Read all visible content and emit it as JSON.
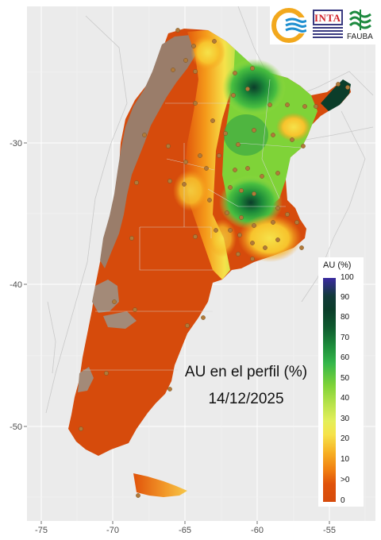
{
  "map": {
    "title_line1": "AU en el perfil (%)",
    "title_line2": "14/12/2025",
    "x_ticks": [
      "-75",
      "-70",
      "-65",
      "-60",
      "-55"
    ],
    "y_ticks": [
      "-30",
      "-40",
      "-50"
    ],
    "x_range": [
      -77,
      -52
    ],
    "y_range": [
      -56,
      -21
    ],
    "grid": true,
    "background_color": "#ebebeb"
  },
  "legend": {
    "title": "AU (%)",
    "labels": [
      "100",
      "90",
      "80",
      "70",
      "60",
      "50",
      "40",
      "30",
      "20",
      "10",
      ">0",
      "0"
    ],
    "position": "bottom-right"
  },
  "logos": {
    "inta_text": "INTA",
    "fauba_text": "FAUBA"
  },
  "colors": {
    "dry_orange": "#d64b0c",
    "arid_brown": "#9a7d6a",
    "yellow": "#f6e24a",
    "green": "#34b64a",
    "dark_green": "#0b3d2a"
  }
}
